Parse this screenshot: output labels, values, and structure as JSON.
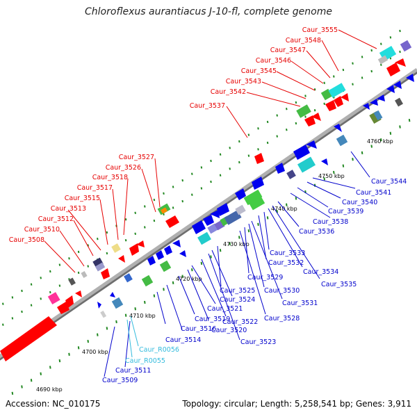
{
  "header": {
    "title": "Chloroflexus aurantiacus J-10-fl, complete genome"
  },
  "footer": {
    "accession": "Accession: NC_010175",
    "topology": "Topology: circular; Length: 5,258,541 bp; Genes: 3,911"
  },
  "ruler": [
    "4690 kbp",
    "4700 kbp",
    "4710 kbp",
    "4720 kbp",
    "4730 kbp",
    "4740 kbp",
    "4750 kbp",
    "4760 kbp"
  ],
  "top_labels": [
    "Caur_3508",
    "Caur_3510",
    "Caur_3512",
    "Caur_3513",
    "Caur_3515",
    "Caur_3517",
    "Caur_3518",
    "Caur_3526",
    "Caur_3527",
    "Caur_3537",
    "Caur_3542",
    "Caur_3543",
    "Caur_3545",
    "Caur_3546",
    "Caur_3547",
    "Caur_3548",
    "Caur_3555"
  ],
  "bottom_labels": [
    "Caur_3509",
    "Caur_3511",
    "Caur_R0055",
    "Caur_R0056",
    "Caur_3514",
    "Caur_3516",
    "Caur_3519",
    "Caur_3520",
    "Caur_3521",
    "Caur_3522",
    "Caur_3523",
    "Caur_3524",
    "Caur_3525",
    "Caur_3528",
    "Caur_3529",
    "Caur_3530",
    "Caur_3531",
    "Caur_3532",
    "Caur_3533",
    "Caur_3534",
    "Caur_3535",
    "Caur_3536",
    "Caur_3538",
    "Caur_3539",
    "Caur_3540",
    "Caur_3541",
    "Caur_3544"
  ],
  "colors": {
    "forward_label": "#e60000",
    "reverse_label": "#0000cc",
    "rna_label": "#33bbdd",
    "axis": "#9a9a9a",
    "tick": "#228822"
  }
}
